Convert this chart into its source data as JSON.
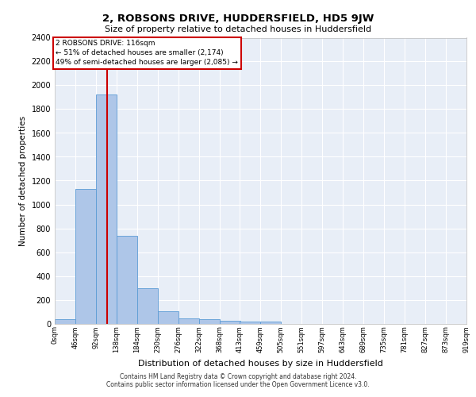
{
  "title": "2, ROBSONS DRIVE, HUDDERSFIELD, HD5 9JW",
  "subtitle": "Size of property relative to detached houses in Huddersfield",
  "xlabel": "Distribution of detached houses by size in Huddersfield",
  "ylabel": "Number of detached properties",
  "footer_line1": "Contains HM Land Registry data © Crown copyright and database right 2024.",
  "footer_line2": "Contains public sector information licensed under the Open Government Licence v3.0.",
  "bar_color": "#aec6e8",
  "bar_edge_color": "#5b9bd5",
  "bg_color": "#e8eef7",
  "grid_color": "#ffffff",
  "vline_color": "#cc0000",
  "annotation_box_color": "#cc0000",
  "bin_edges": [
    0,
    46,
    92,
    138,
    184,
    230,
    276,
    322,
    368,
    413,
    459,
    505,
    551,
    597,
    643,
    689,
    735,
    781,
    827,
    873,
    919
  ],
  "bin_labels": [
    "0sqm",
    "46sqm",
    "92sqm",
    "138sqm",
    "184sqm",
    "230sqm",
    "276sqm",
    "322sqm",
    "368sqm",
    "413sqm",
    "459sqm",
    "505sqm",
    "551sqm",
    "597sqm",
    "643sqm",
    "689sqm",
    "735sqm",
    "781sqm",
    "827sqm",
    "873sqm",
    "919sqm"
  ],
  "bar_heights": [
    35,
    1130,
    1920,
    740,
    300,
    105,
    42,
    38,
    25,
    15,
    15,
    0,
    0,
    0,
    0,
    0,
    0,
    0,
    0,
    0
  ],
  "ylim": [
    0,
    2400
  ],
  "vline_x": 116,
  "annotation_line1": "2 ROBSONS DRIVE: 116sqm",
  "annotation_line2": "← 51% of detached houses are smaller (2,174)",
  "annotation_line3": "49% of semi-detached houses are larger (2,085) →",
  "yticks": [
    0,
    200,
    400,
    600,
    800,
    1000,
    1200,
    1400,
    1600,
    1800,
    2000,
    2200,
    2400
  ]
}
